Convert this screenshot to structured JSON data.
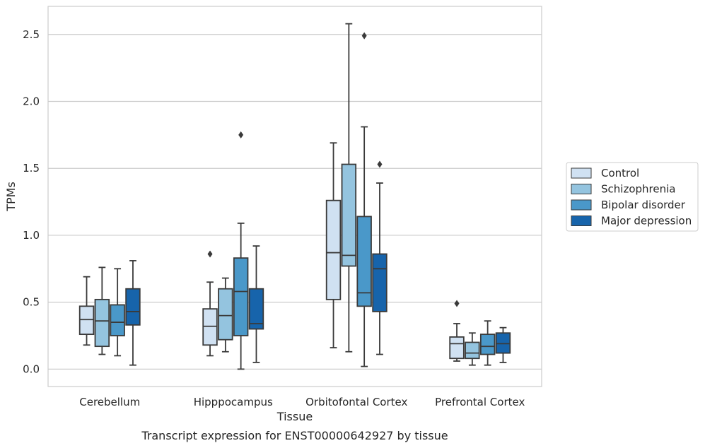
{
  "chart_data": {
    "type": "box",
    "caption": "Transcript expression for ENST00000642927 by tissue",
    "xlabel": "Tissue",
    "ylabel": "TPMs",
    "ylim": [
      -0.13,
      2.71
    ],
    "yticks": [
      0.0,
      0.5,
      1.0,
      1.5,
      2.0,
      2.5
    ],
    "ytick_labels": [
      "0.0",
      "0.5",
      "1.0",
      "1.5",
      "2.0",
      "2.5"
    ],
    "grid": true,
    "legend_position": "right",
    "categories": [
      "Cerebellum",
      "Hipppocampus",
      "Orbitofontal Cortex",
      "Prefrontal Cortex"
    ],
    "series": [
      {
        "name": "Control",
        "color": "#d0e1f2",
        "boxes": [
          {
            "whislo": 0.18,
            "q1": 0.26,
            "med": 0.37,
            "q3": 0.47,
            "whishi": 0.69,
            "fliers": []
          },
          {
            "whislo": 0.1,
            "q1": 0.18,
            "med": 0.32,
            "q3": 0.45,
            "whishi": 0.65,
            "fliers": [
              0.86
            ]
          },
          {
            "whislo": 0.16,
            "q1": 0.52,
            "med": 0.87,
            "q3": 1.26,
            "whishi": 1.69,
            "fliers": []
          },
          {
            "whislo": 0.06,
            "q1": 0.08,
            "med": 0.19,
            "q3": 0.24,
            "whishi": 0.34,
            "fliers": [
              0.49
            ]
          }
        ]
      },
      {
        "name": "Schizophrenia",
        "color": "#94c4df",
        "boxes": [
          {
            "whislo": 0.11,
            "q1": 0.17,
            "med": 0.36,
            "q3": 0.52,
            "whishi": 0.76,
            "fliers": []
          },
          {
            "whislo": 0.13,
            "q1": 0.22,
            "med": 0.4,
            "q3": 0.6,
            "whishi": 0.68,
            "fliers": []
          },
          {
            "whislo": 0.13,
            "q1": 0.77,
            "med": 0.85,
            "q3": 1.53,
            "whishi": 2.58,
            "fliers": []
          },
          {
            "whislo": 0.03,
            "q1": 0.08,
            "med": 0.12,
            "q3": 0.2,
            "whishi": 0.27,
            "fliers": []
          }
        ]
      },
      {
        "name": "Bipolar disorder",
        "color": "#4a98c9",
        "boxes": [
          {
            "whislo": 0.1,
            "q1": 0.25,
            "med": 0.35,
            "q3": 0.48,
            "whishi": 0.75,
            "fliers": []
          },
          {
            "whislo": 0.0,
            "q1": 0.25,
            "med": 0.58,
            "q3": 0.83,
            "whishi": 1.09,
            "fliers": [
              1.75
            ]
          },
          {
            "whislo": 0.02,
            "q1": 0.47,
            "med": 0.57,
            "q3": 1.14,
            "whishi": 1.81,
            "fliers": [
              2.49
            ]
          },
          {
            "whislo": 0.03,
            "q1": 0.11,
            "med": 0.17,
            "q3": 0.26,
            "whishi": 0.36,
            "fliers": []
          }
        ]
      },
      {
        "name": "Major depression",
        "color": "#1764ab",
        "boxes": [
          {
            "whislo": 0.03,
            "q1": 0.33,
            "med": 0.43,
            "q3": 0.6,
            "whishi": 0.81,
            "fliers": []
          },
          {
            "whislo": 0.05,
            "q1": 0.3,
            "med": 0.34,
            "q3": 0.6,
            "whishi": 0.92,
            "fliers": []
          },
          {
            "whislo": 0.11,
            "q1": 0.43,
            "med": 0.75,
            "q3": 0.86,
            "whishi": 1.39,
            "fliers": [
              1.53
            ]
          },
          {
            "whislo": 0.05,
            "q1": 0.12,
            "med": 0.19,
            "q3": 0.27,
            "whishi": 0.31,
            "fliers": []
          }
        ]
      }
    ]
  }
}
